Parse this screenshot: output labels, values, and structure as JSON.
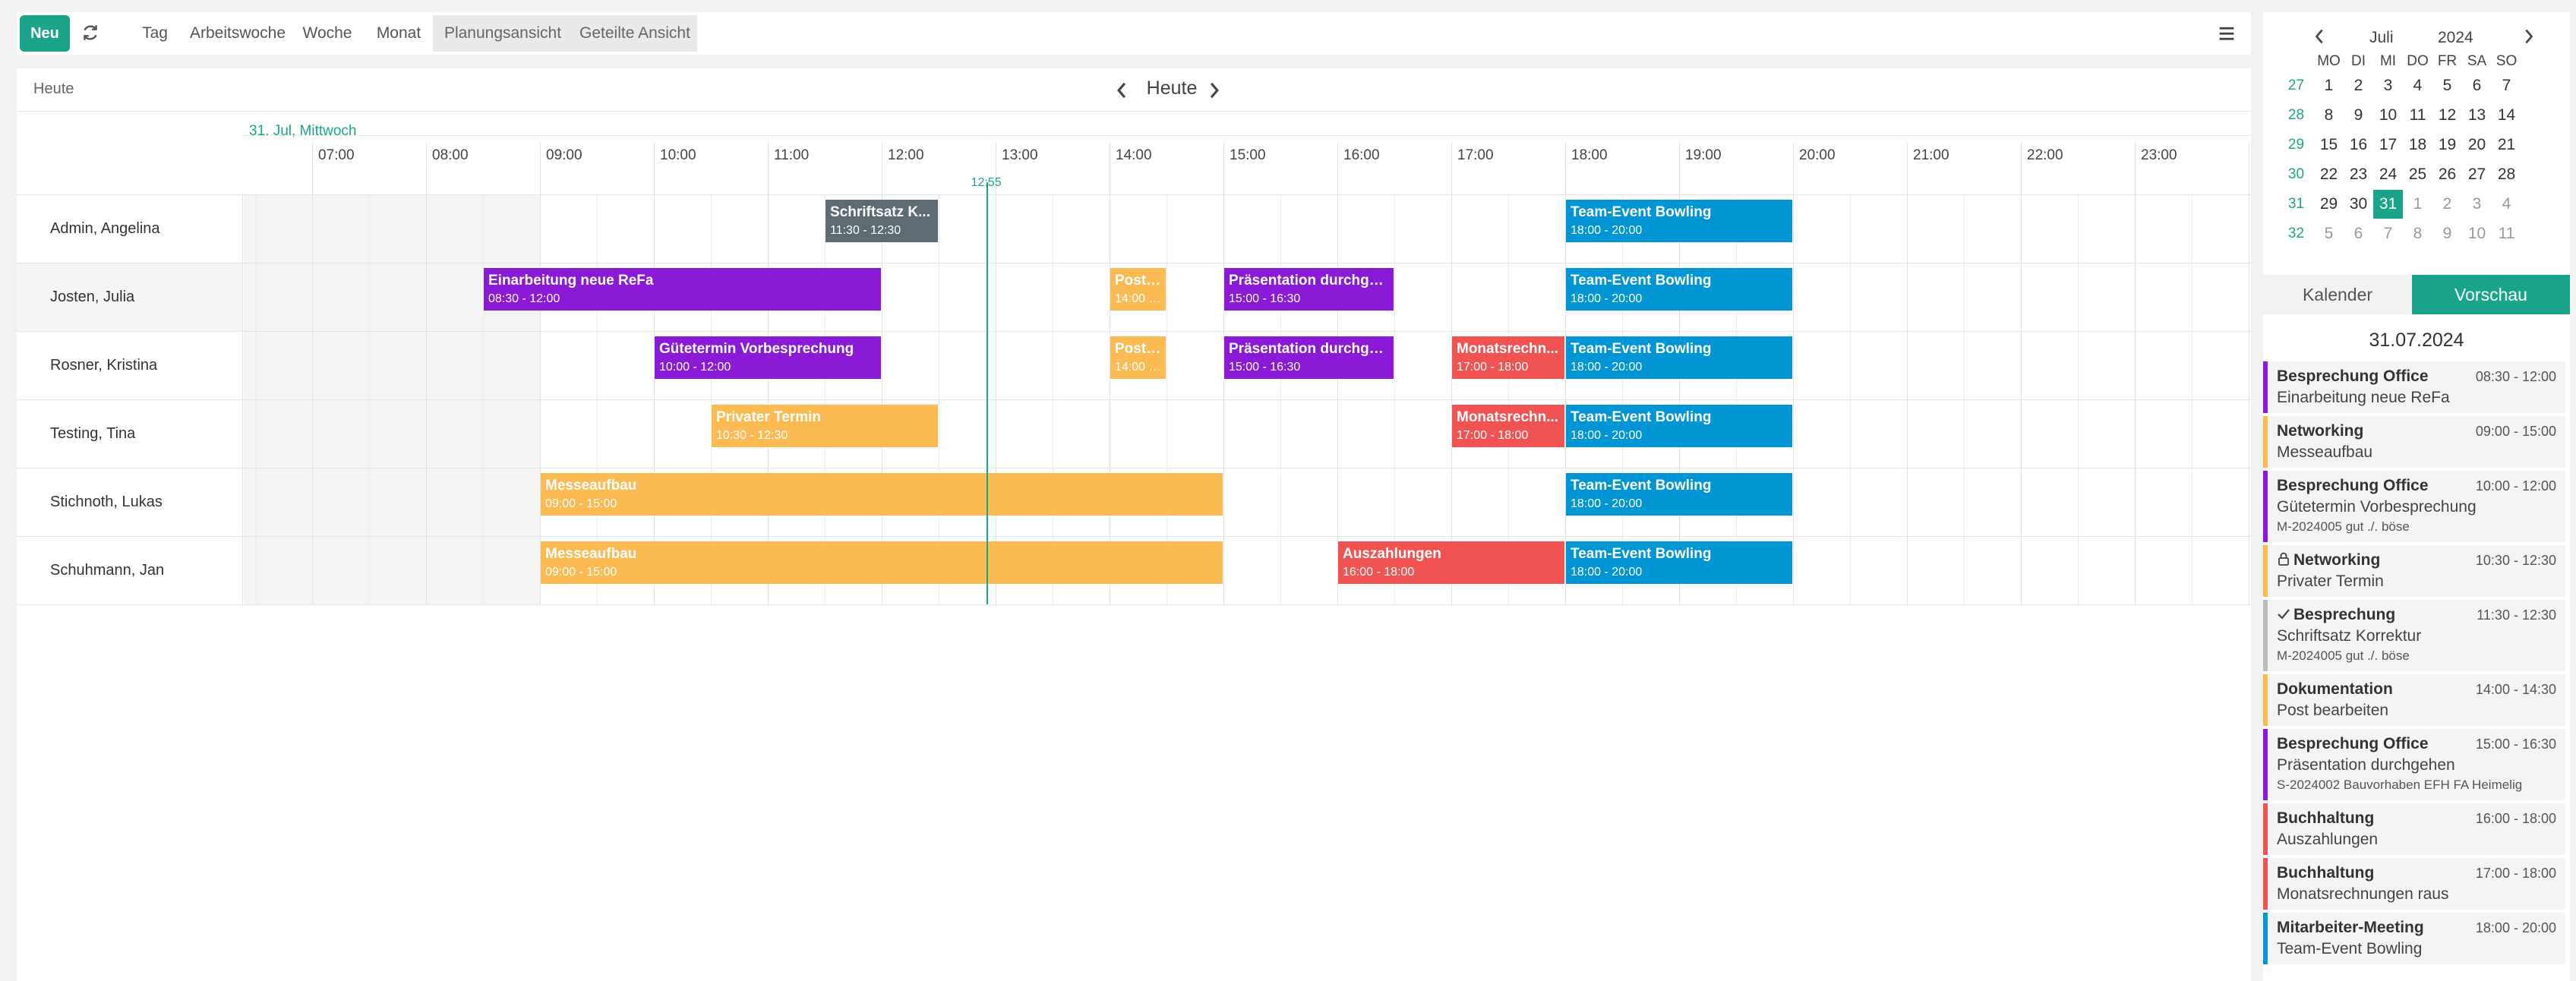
{
  "toolbar": {
    "new_label": "Neu",
    "views": [
      "Tag",
      "Arbeitswoche",
      "Woche",
      "Monat"
    ],
    "segmented": [
      "Planungsansicht",
      "Geteilte Ansicht"
    ]
  },
  "scheduler": {
    "header_left": "Heute",
    "nav_title": "Heute",
    "date_label": "31. Jul, Mittwoch",
    "hours": [
      "07:00",
      "08:00",
      "09:00",
      "10:00",
      "11:00",
      "12:00",
      "13:00",
      "14:00",
      "15:00",
      "16:00",
      "17:00",
      "18:00",
      "19:00",
      "20:00",
      "21:00",
      "22:00",
      "23:00"
    ],
    "now_label": "12:55",
    "now_time": 12.917,
    "resources": [
      {
        "name": "Admin, Angelina",
        "events": [
          {
            "title": "Schriftsatz K...",
            "time": "11:30 - 12:30",
            "start": 11.5,
            "end": 12.5,
            "color": "#5f6b72"
          },
          {
            "title": "Team-Event Bowling",
            "time": "18:00 - 20:00",
            "start": 18,
            "end": 20,
            "color": "#0096d6"
          }
        ]
      },
      {
        "name": "Josten, Julia",
        "events": [
          {
            "title": "Einarbeitung neue ReFa",
            "time": "08:30 - 12:00",
            "start": 8.5,
            "end": 12,
            "color": "#8a1ad6"
          },
          {
            "title": "Post ...",
            "time": "14:00 -...",
            "start": 14,
            "end": 14.5,
            "color": "#fbba52"
          },
          {
            "title": "Präsentation durchge...",
            "time": "15:00 - 16:30",
            "start": 15,
            "end": 16.5,
            "color": "#8a1ad6"
          },
          {
            "title": "Team-Event Bowling",
            "time": "18:00 - 20:00",
            "start": 18,
            "end": 20,
            "color": "#0096d6"
          }
        ]
      },
      {
        "name": "Rosner, Kristina",
        "events": [
          {
            "title": "Gütetermin Vorbesprechung",
            "time": "10:00 - 12:00",
            "start": 10,
            "end": 12,
            "color": "#8a1ad6"
          },
          {
            "title": "Post ...",
            "time": "14:00 -...",
            "start": 14,
            "end": 14.5,
            "color": "#fbba52"
          },
          {
            "title": "Präsentation durchge...",
            "time": "15:00 - 16:30",
            "start": 15,
            "end": 16.5,
            "color": "#8a1ad6"
          },
          {
            "title": "Monatsrechn...",
            "time": "17:00 - 18:00",
            "start": 17,
            "end": 18,
            "color": "#f05352"
          },
          {
            "title": "Team-Event Bowling",
            "time": "18:00 - 20:00",
            "start": 18,
            "end": 20,
            "color": "#0096d6"
          }
        ]
      },
      {
        "name": "Testing, Tina",
        "events": [
          {
            "title": "Privater Termin",
            "time": "10:30 - 12:30",
            "start": 10.5,
            "end": 12.5,
            "color": "#fbba52"
          },
          {
            "title": "Monatsrechn...",
            "time": "17:00 - 18:00",
            "start": 17,
            "end": 18,
            "color": "#f05352"
          },
          {
            "title": "Team-Event Bowling",
            "time": "18:00 - 20:00",
            "start": 18,
            "end": 20,
            "color": "#0096d6"
          }
        ]
      },
      {
        "name": "Stichnoth, Lukas",
        "events": [
          {
            "title": "Messeaufbau",
            "time": "09:00 - 15:00",
            "start": 9,
            "end": 15,
            "color": "#fbba52"
          },
          {
            "title": "Team-Event Bowling",
            "time": "18:00 - 20:00",
            "start": 18,
            "end": 20,
            "color": "#0096d6"
          }
        ]
      },
      {
        "name": "Schuhmann, Jan",
        "events": [
          {
            "title": "Messeaufbau",
            "time": "09:00 - 15:00",
            "start": 9,
            "end": 15,
            "color": "#fbba52"
          },
          {
            "title": "Auszahlungen",
            "time": "16:00 - 18:00",
            "start": 16,
            "end": 18,
            "color": "#f05352"
          },
          {
            "title": "Team-Event Bowling",
            "time": "18:00 - 20:00",
            "start": 18,
            "end": 20,
            "color": "#0096d6"
          }
        ]
      }
    ]
  },
  "mini_calendar": {
    "month": "Juli",
    "year": "2024",
    "weekdays": [
      "MO",
      "DI",
      "MI",
      "DO",
      "FR",
      "SA",
      "SO"
    ],
    "weeks": [
      {
        "wk": "27",
        "days": [
          "1",
          "2",
          "3",
          "4",
          "5",
          "6",
          "7"
        ]
      },
      {
        "wk": "28",
        "days": [
          "8",
          "9",
          "10",
          "11",
          "12",
          "13",
          "14"
        ]
      },
      {
        "wk": "29",
        "days": [
          "15",
          "16",
          "17",
          "18",
          "19",
          "20",
          "21"
        ]
      },
      {
        "wk": "30",
        "days": [
          "22",
          "23",
          "24",
          "25",
          "26",
          "27",
          "28"
        ]
      },
      {
        "wk": "31",
        "days": [
          "29",
          "30",
          "31",
          "1",
          "2",
          "3",
          "4"
        ]
      },
      {
        "wk": "32",
        "days": [
          "5",
          "6",
          "7",
          "8",
          "9",
          "10",
          "11"
        ]
      }
    ],
    "selected_day": "31"
  },
  "tabs": {
    "calendar": "Kalender",
    "preview": "Vorschau"
  },
  "preview": {
    "date": "31.07.2024",
    "items": [
      {
        "category": "Besprechung Office",
        "time": "08:30 - 12:00",
        "title": "Einarbeitung neue ReFa",
        "sub": "",
        "color": "#8a1ad6",
        "icon": ""
      },
      {
        "category": "Networking",
        "time": "09:00 - 15:00",
        "title": "Messeaufbau",
        "sub": "",
        "color": "#fbba52",
        "icon": ""
      },
      {
        "category": "Besprechung Office",
        "time": "10:00 - 12:00",
        "title": "Gütetermin Vorbesprechung",
        "sub": "M-2024005 gut ./. böse",
        "color": "#8a1ad6",
        "icon": ""
      },
      {
        "category": "Networking",
        "time": "10:30 - 12:30",
        "title": "Privater Termin",
        "sub": "",
        "color": "#fbba52",
        "icon": "lock-icon"
      },
      {
        "category": "Besprechung",
        "time": "11:30 - 12:30",
        "title": "Schriftsatz Korrektur",
        "sub": "M-2024005 gut ./. böse",
        "color": "#bbbbbb",
        "icon": "check-icon"
      },
      {
        "category": "Dokumentation",
        "time": "14:00 - 14:30",
        "title": "Post bearbeiten",
        "sub": "",
        "color": "#fbba52",
        "icon": ""
      },
      {
        "category": "Besprechung Office",
        "time": "15:00 - 16:30",
        "title": "Präsentation durchgehen",
        "sub": "S-2024002 Bauvorhaben EFH FA Heimelig",
        "color": "#8a1ad6",
        "icon": ""
      },
      {
        "category": "Buchhaltung",
        "time": "16:00 - 18:00",
        "title": "Auszahlungen",
        "sub": "",
        "color": "#f05352",
        "icon": ""
      },
      {
        "category": "Buchhaltung",
        "time": "17:00 - 18:00",
        "title": "Monatsrechnungen raus",
        "sub": "",
        "color": "#f05352",
        "icon": ""
      },
      {
        "category": "Mitarbeiter-Meeting",
        "time": "18:00 - 20:00",
        "title": "Team-Event Bowling",
        "sub": "",
        "color": "#0096d6",
        "icon": ""
      }
    ]
  }
}
